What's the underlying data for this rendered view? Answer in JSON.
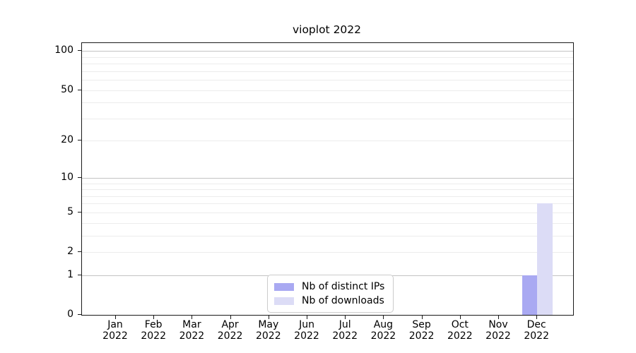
{
  "chart_data": {
    "type": "bar",
    "title": "vioplot 2022",
    "x_months": [
      "Jan",
      "Feb",
      "Mar",
      "Apr",
      "May",
      "Jun",
      "Jul",
      "Aug",
      "Sep",
      "Oct",
      "Nov",
      "Dec"
    ],
    "x_year_label": "2022",
    "series": [
      {
        "name": "Nb of distinct IPs",
        "color": "#a9a9f2",
        "values": [
          0,
          0,
          0,
          0,
          0,
          0,
          0,
          0,
          0,
          0,
          0,
          1
        ]
      },
      {
        "name": "Nb of downloads",
        "color": "#dcdcf6",
        "values": [
          0,
          0,
          0,
          0,
          0,
          0,
          0,
          0,
          0,
          0,
          0,
          6
        ]
      }
    ],
    "y_axis": {
      "scale": "log1p",
      "range": [
        0,
        115
      ],
      "tick_values": [
        0,
        1,
        2,
        5,
        10,
        20,
        50,
        100
      ],
      "major_gridlines": [
        1,
        10,
        100
      ],
      "minor_gridlines": [
        2,
        3,
        4,
        5,
        6,
        7,
        8,
        9,
        20,
        30,
        40,
        50,
        60,
        70,
        80,
        90
      ]
    },
    "legend": {
      "position": "bottom-center"
    },
    "colors": {
      "major_grid": "#c3c3c3",
      "minor_grid": "#ececec",
      "axis": "#1a1a1a",
      "legend_border": "#cccccc",
      "background": "#ffffff"
    }
  }
}
